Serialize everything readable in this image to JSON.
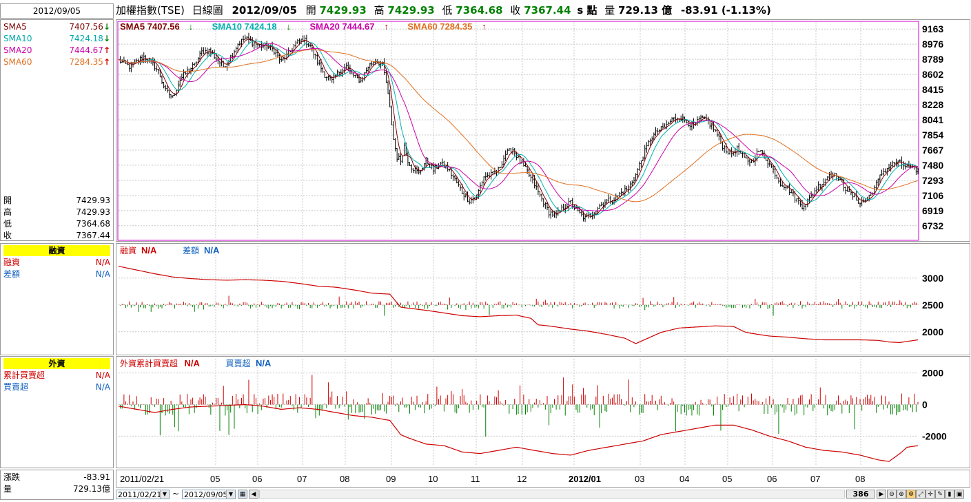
{
  "header": {
    "date_box": "2012/09/05",
    "index_name": "加權指數(TSE)",
    "chart_kind": "日線圖",
    "date": "2012/09/05",
    "open_label": "開",
    "open": "7429.93",
    "high_label": "高",
    "high": "7429.93",
    "low_label": "低",
    "low": "7364.68",
    "close_label": "收",
    "close": "7367.44",
    "s_label": "s 點",
    "vol_label": "量",
    "vol": "729.13 億",
    "change": "-83.91 (-1.13%)"
  },
  "sidebar": {
    "sma": [
      {
        "label": "SMA5",
        "value": "7407.56",
        "dir": "down",
        "color": "#800000"
      },
      {
        "label": "SMA10",
        "value": "7424.18",
        "dir": "down",
        "color": "#00aaaa"
      },
      {
        "label": "SMA20",
        "value": "7444.67",
        "dir": "up",
        "color": "#cc00aa"
      },
      {
        "label": "SMA60",
        "value": "7284.35",
        "dir": "up",
        "color": "#e07020"
      }
    ],
    "ohlc": [
      {
        "label": "開",
        "value": "7429.93"
      },
      {
        "label": "高",
        "value": "7429.93"
      },
      {
        "label": "低",
        "value": "7364.68"
      },
      {
        "label": "收",
        "value": "7367.44"
      }
    ],
    "margin_title": "融資",
    "margin_rows": [
      {
        "label": "融資",
        "value": "N/A",
        "color": "#d00000"
      },
      {
        "label": "差額",
        "value": "N/A",
        "color": "#1060c0"
      }
    ],
    "foreign_title": "外資",
    "foreign_rows": [
      {
        "label": "累計買賣超",
        "value": "N/A",
        "color": "#d00000"
      },
      {
        "label": "買賣超",
        "value": "N/A",
        "color": "#1060c0"
      }
    ],
    "bottom": [
      {
        "label": "漲跌",
        "value": "-83.91"
      },
      {
        "label": "量",
        "value": "729.13億"
      }
    ]
  },
  "legends": {
    "main": [
      {
        "text": "SMA5 7407.56",
        "arrow": "down",
        "color": "#800000"
      },
      {
        "text": "SMA10 7424.18",
        "arrow": "down",
        "color": "#00b0b0"
      },
      {
        "text": "SMA20 7444.67",
        "arrow": "up",
        "color": "#cc00aa"
      },
      {
        "text": "SMA60 7284.35",
        "arrow": "up",
        "color": "#e07020"
      }
    ],
    "margin": [
      {
        "text": "融資",
        "val": "N/A",
        "color": "#d00000"
      },
      {
        "text": "差額",
        "val": "N/A",
        "color": "#1060c0"
      }
    ],
    "foreign": [
      {
        "text": "外資累計買賣超",
        "val": "N/A",
        "color": "#d00000"
      },
      {
        "text": "買賣超",
        "val": "N/A",
        "color": "#1060c0"
      }
    ]
  },
  "footer": {
    "start_date": "2011/02/21",
    "end_date": "2012/09/05",
    "tilde": "~",
    "count": "386"
  },
  "chart_data": [
    {
      "type": "candlestick",
      "title": "加權指數(TSE) 日線圖",
      "x_ticks": [
        "2011/02/21",
        "05",
        "06",
        "07",
        "08",
        "09",
        "10",
        "11",
        "12",
        "2012/01",
        "03",
        "04",
        "05",
        "06",
        "07",
        "08"
      ],
      "y_ticks": [
        9163,
        8976,
        8789,
        8602,
        8415,
        8228,
        8041,
        7854,
        7667,
        7480,
        7293,
        7106,
        6919,
        6732
      ],
      "ylim": [
        6560,
        9250
      ],
      "close_path": [
        [
          0,
          8780
        ],
        [
          6,
          8700
        ],
        [
          10,
          8760
        ],
        [
          14,
          8820
        ],
        [
          18,
          8760
        ],
        [
          22,
          8640
        ],
        [
          26,
          8400
        ],
        [
          30,
          8320
        ],
        [
          34,
          8540
        ],
        [
          38,
          8640
        ],
        [
          42,
          8720
        ],
        [
          46,
          8880
        ],
        [
          50,
          8900
        ],
        [
          54,
          8800
        ],
        [
          58,
          8700
        ],
        [
          62,
          8820
        ],
        [
          66,
          8980
        ],
        [
          70,
          9050
        ],
        [
          74,
          9000
        ],
        [
          78,
          8960
        ],
        [
          82,
          8950
        ],
        [
          86,
          8900
        ],
        [
          90,
          8760
        ],
        [
          94,
          8860
        ],
        [
          98,
          8980
        ],
        [
          102,
          9040
        ],
        [
          106,
          8960
        ],
        [
          110,
          8760
        ],
        [
          114,
          8600
        ],
        [
          118,
          8520
        ],
        [
          122,
          8640
        ],
        [
          126,
          8700
        ],
        [
          130,
          8580
        ],
        [
          134,
          8520
        ],
        [
          138,
          8700
        ],
        [
          142,
          8780
        ],
        [
          146,
          8720
        ],
        [
          148,
          8500
        ],
        [
          150,
          8180
        ],
        [
          152,
          7800
        ],
        [
          154,
          7580
        ],
        [
          156,
          7540
        ],
        [
          158,
          7720
        ],
        [
          160,
          7540
        ],
        [
          162,
          7460
        ],
        [
          166,
          7380
        ],
        [
          170,
          7540
        ],
        [
          174,
          7420
        ],
        [
          178,
          7500
        ],
        [
          182,
          7440
        ],
        [
          186,
          7300
        ],
        [
          190,
          7150
        ],
        [
          194,
          7040
        ],
        [
          198,
          7100
        ],
        [
          202,
          7340
        ],
        [
          206,
          7360
        ],
        [
          210,
          7420
        ],
        [
          214,
          7620
        ],
        [
          218,
          7680
        ],
        [
          222,
          7520
        ],
        [
          226,
          7400
        ],
        [
          230,
          7240
        ],
        [
          234,
          7060
        ],
        [
          238,
          6900
        ],
        [
          242,
          6860
        ],
        [
          246,
          6960
        ],
        [
          250,
          7020
        ],
        [
          254,
          6900
        ],
        [
          258,
          6820
        ],
        [
          262,
          6880
        ],
        [
          266,
          6980
        ],
        [
          270,
          7040
        ],
        [
          274,
          7060
        ],
        [
          278,
          7140
        ],
        [
          282,
          7200
        ],
        [
          286,
          7360
        ],
        [
          290,
          7600
        ],
        [
          294,
          7800
        ],
        [
          298,
          7900
        ],
        [
          302,
          7950
        ],
        [
          306,
          8040
        ],
        [
          310,
          8080
        ],
        [
          314,
          8020
        ],
        [
          318,
          7960
        ],
        [
          322,
          8060
        ],
        [
          326,
          8020
        ],
        [
          330,
          7900
        ],
        [
          334,
          7720
        ],
        [
          338,
          7620
        ],
        [
          342,
          7680
        ],
        [
          346,
          7560
        ],
        [
          350,
          7520
        ],
        [
          354,
          7660
        ],
        [
          358,
          7560
        ],
        [
          362,
          7420
        ],
        [
          366,
          7260
        ],
        [
          370,
          7200
        ],
        [
          374,
          7080
        ],
        [
          378,
          6980
        ],
        [
          382,
          7060
        ],
        [
          386,
          7200
        ],
        [
          390,
          7280
        ],
        [
          394,
          7400
        ],
        [
          398,
          7300
        ],
        [
          402,
          7200
        ],
        [
          406,
          7100
        ],
        [
          410,
          7020
        ],
        [
          414,
          7060
        ],
        [
          418,
          7200
        ],
        [
          422,
          7380
        ],
        [
          426,
          7460
        ],
        [
          430,
          7520
        ],
        [
          434,
          7480
        ],
        [
          438,
          7440
        ],
        [
          442,
          7420
        ]
      ],
      "series": [
        {
          "name": "SMA5",
          "last": 7407.56
        },
        {
          "name": "SMA10",
          "last": 7424.18
        },
        {
          "name": "SMA20",
          "last": 7444.67
        },
        {
          "name": "SMA60",
          "last": 7284.35
        }
      ]
    },
    {
      "type": "bar+line",
      "title": "融資",
      "y_ticks": [
        3000,
        2500,
        2000
      ],
      "ylim": [
        1600,
        3600
      ],
      "line_path": [
        [
          0,
          3220
        ],
        [
          10,
          3150
        ],
        [
          20,
          3080
        ],
        [
          30,
          3020
        ],
        [
          40,
          2990
        ],
        [
          50,
          2970
        ],
        [
          60,
          2960
        ],
        [
          70,
          2970
        ],
        [
          80,
          2960
        ],
        [
          90,
          2940
        ],
        [
          100,
          2900
        ],
        [
          110,
          2850
        ],
        [
          120,
          2830
        ],
        [
          130,
          2780
        ],
        [
          140,
          2720
        ],
        [
          150,
          2700
        ],
        [
          156,
          2460
        ],
        [
          160,
          2440
        ],
        [
          170,
          2400
        ],
        [
          180,
          2350
        ],
        [
          190,
          2300
        ],
        [
          200,
          2280
        ],
        [
          210,
          2300
        ],
        [
          220,
          2310
        ],
        [
          228,
          2250
        ],
        [
          232,
          2130
        ],
        [
          240,
          2100
        ],
        [
          250,
          2050
        ],
        [
          260,
          2010
        ],
        [
          270,
          1950
        ],
        [
          280,
          1880
        ],
        [
          286,
          1780
        ],
        [
          290,
          1840
        ],
        [
          300,
          1990
        ],
        [
          310,
          2070
        ],
        [
          320,
          2090
        ],
        [
          330,
          2110
        ],
        [
          340,
          2100
        ],
        [
          346,
          2000
        ],
        [
          350,
          1970
        ],
        [
          360,
          1920
        ],
        [
          370,
          1900
        ],
        [
          380,
          1870
        ],
        [
          390,
          1850
        ],
        [
          400,
          1850
        ],
        [
          410,
          1850
        ],
        [
          420,
          1840
        ],
        [
          426,
          1810
        ],
        [
          432,
          1800
        ],
        [
          442,
          1850
        ]
      ]
    },
    {
      "type": "bar+line",
      "title": "外資累計買賣超",
      "y_ticks": [
        2000,
        0,
        -2000
      ],
      "ylim": [
        -3900,
        2900
      ],
      "line_path": [
        [
          0,
          -100
        ],
        [
          10,
          -300
        ],
        [
          20,
          -500
        ],
        [
          30,
          -300
        ],
        [
          40,
          -150
        ],
        [
          50,
          -100
        ],
        [
          60,
          -50
        ],
        [
          70,
          0
        ],
        [
          80,
          -100
        ],
        [
          90,
          -300
        ],
        [
          100,
          -200
        ],
        [
          110,
          -300
        ],
        [
          120,
          -500
        ],
        [
          130,
          -700
        ],
        [
          140,
          -800
        ],
        [
          150,
          -1000
        ],
        [
          156,
          -1900
        ],
        [
          160,
          -2100
        ],
        [
          170,
          -2500
        ],
        [
          180,
          -2600
        ],
        [
          190,
          -3000
        ],
        [
          200,
          -3100
        ],
        [
          210,
          -2900
        ],
        [
          220,
          -2700
        ],
        [
          230,
          -2900
        ],
        [
          240,
          -3100
        ],
        [
          250,
          -3200
        ],
        [
          260,
          -2900
        ],
        [
          270,
          -2700
        ],
        [
          280,
          -2500
        ],
        [
          290,
          -2300
        ],
        [
          300,
          -1900
        ],
        [
          310,
          -1700
        ],
        [
          320,
          -1500
        ],
        [
          330,
          -1300
        ],
        [
          340,
          -1300
        ],
        [
          350,
          -1600
        ],
        [
          360,
          -2000
        ],
        [
          370,
          -2300
        ],
        [
          380,
          -2700
        ],
        [
          390,
          -2900
        ],
        [
          400,
          -3000
        ],
        [
          410,
          -3200
        ],
        [
          420,
          -3500
        ],
        [
          426,
          -3600
        ],
        [
          432,
          -3100
        ],
        [
          436,
          -2700
        ],
        [
          442,
          -2600
        ]
      ]
    }
  ]
}
